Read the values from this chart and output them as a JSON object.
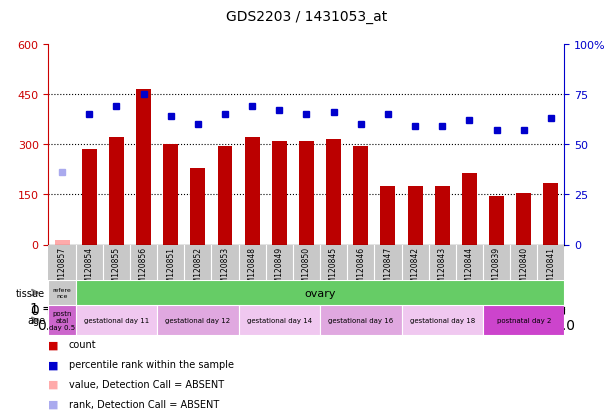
{
  "title": "GDS2203 / 1431053_at",
  "samples": [
    "GSM120857",
    "GSM120854",
    "GSM120855",
    "GSM120856",
    "GSM120851",
    "GSM120852",
    "GSM120853",
    "GSM120848",
    "GSM120849",
    "GSM120850",
    "GSM120845",
    "GSM120846",
    "GSM120847",
    "GSM120842",
    "GSM120843",
    "GSM120844",
    "GSM120839",
    "GSM120840",
    "GSM120841"
  ],
  "count_values": [
    15,
    285,
    320,
    465,
    300,
    230,
    295,
    320,
    310,
    310,
    315,
    295,
    175,
    175,
    175,
    215,
    145,
    155,
    185
  ],
  "count_absent": [
    true,
    false,
    false,
    false,
    false,
    false,
    false,
    false,
    false,
    false,
    false,
    false,
    false,
    false,
    false,
    false,
    false,
    false,
    false
  ],
  "rank_values": [
    36,
    65,
    69,
    75,
    64,
    60,
    65,
    69,
    67,
    65,
    66,
    60,
    65,
    59,
    59,
    62,
    57,
    57,
    63
  ],
  "rank_absent": [
    false,
    false,
    false,
    false,
    false,
    false,
    false,
    false,
    false,
    false,
    false,
    false,
    false,
    false,
    false,
    false,
    false,
    false,
    false
  ],
  "rank_absent_dot": [
    false,
    false,
    false,
    false,
    false,
    false,
    false,
    false,
    false,
    false,
    false,
    false,
    false,
    false,
    false,
    false,
    false,
    false,
    false
  ],
  "rank_dot_absent_idx": 0,
  "ylim_left": [
    0,
    600
  ],
  "ylim_right": [
    0,
    100
  ],
  "yticks_left": [
    0,
    150,
    300,
    450,
    600
  ],
  "yticks_right": [
    0,
    25,
    50,
    75,
    100
  ],
  "tissue_first_label": "refere\nnce",
  "tissue_first_color": "#c8c8c8",
  "tissue_second_label": "ovary",
  "tissue_second_color": "#66cc66",
  "age_groups": [
    {
      "label": "postn\natal\nday 0.5",
      "color": "#cc66cc",
      "start": 0,
      "end": 1
    },
    {
      "label": "gestational day 11",
      "color": "#f0c8f0",
      "start": 1,
      "end": 4
    },
    {
      "label": "gestational day 12",
      "color": "#e0a8e0",
      "start": 4,
      "end": 7
    },
    {
      "label": "gestational day 14",
      "color": "#f0c8f0",
      "start": 7,
      "end": 10
    },
    {
      "label": "gestational day 16",
      "color": "#e0a8e0",
      "start": 10,
      "end": 13
    },
    {
      "label": "gestational day 18",
      "color": "#f0c8f0",
      "start": 13,
      "end": 16
    },
    {
      "label": "postnatal day 2",
      "color": "#cc44cc",
      "start": 16,
      "end": 19
    }
  ],
  "legend_items": [
    {
      "label": "count",
      "color": "#cc0000"
    },
    {
      "label": "percentile rank within the sample",
      "color": "#0000cc"
    },
    {
      "label": "value, Detection Call = ABSENT",
      "color": "#ffaaaa"
    },
    {
      "label": "rank, Detection Call = ABSENT",
      "color": "#aaaaee"
    }
  ],
  "bar_color": "#bb0000",
  "bar_absent_color": "#ffaaaa",
  "rank_color": "#0000cc",
  "rank_absent_color": "#aaaaee",
  "xticklabel_bg": "#c8c8c8",
  "plot_bg": "#ffffff",
  "left_axis_color": "#cc0000",
  "right_axis_color": "#0000cc",
  "grid_linestyle": ":",
  "grid_color": "#000000",
  "grid_linewidth": 0.8
}
